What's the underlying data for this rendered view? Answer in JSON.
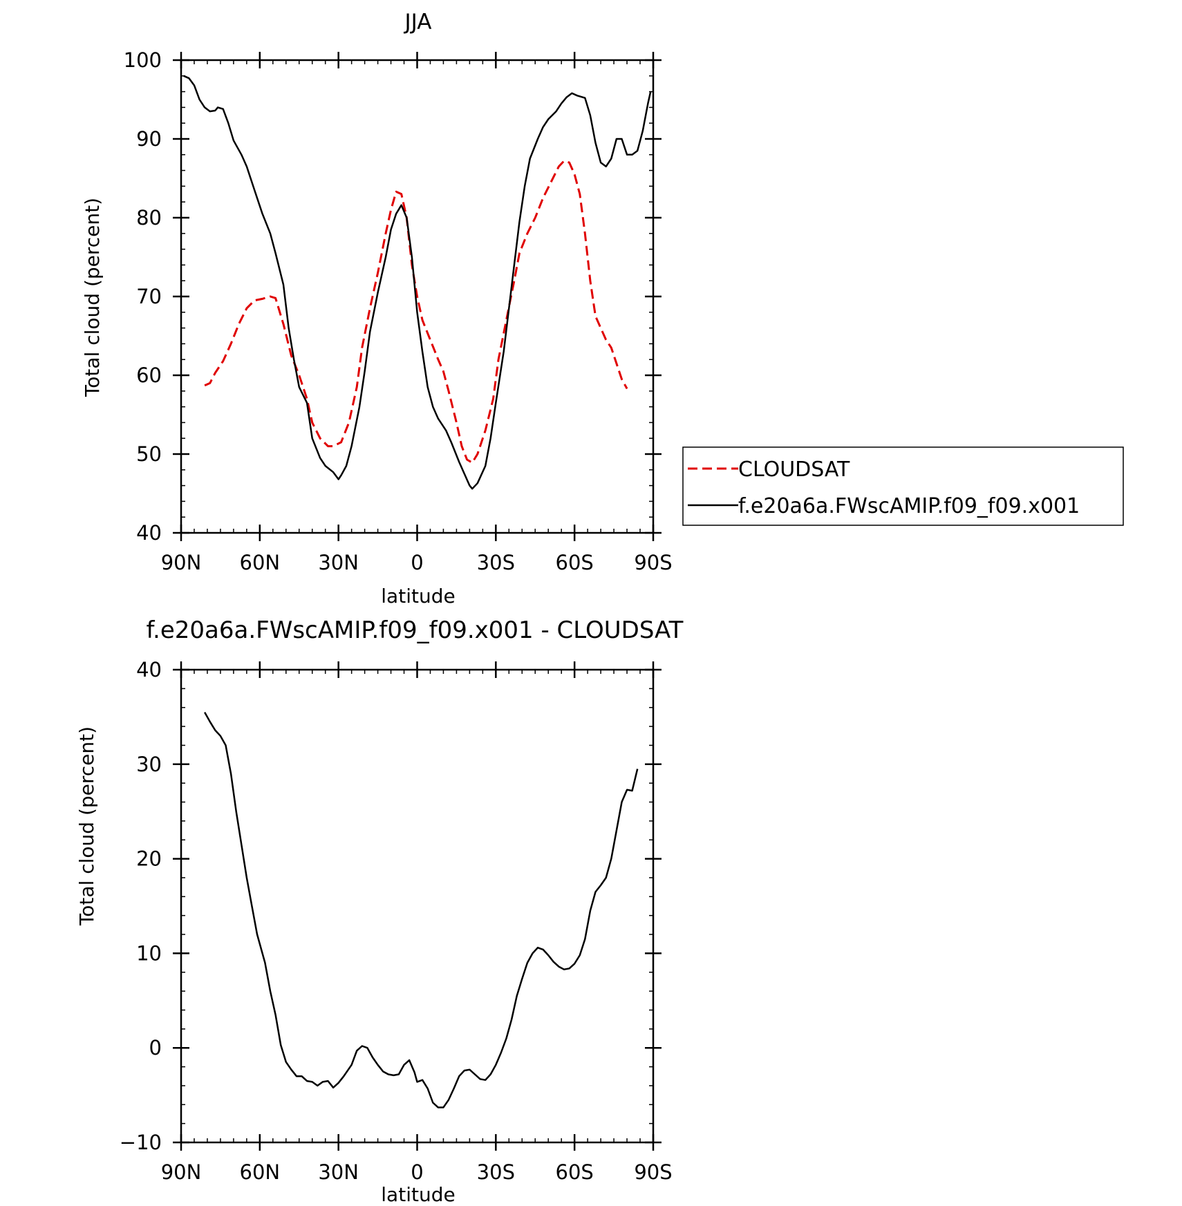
{
  "chart_data": [
    {
      "type": "line",
      "title": "JJA",
      "xlabel": "latitude",
      "ylabel": "Total cloud (percent)",
      "xlim": [
        90,
        -90
      ],
      "ylim": [
        40,
        100
      ],
      "x_ticks": [
        {
          "value": 90,
          "label": "90N"
        },
        {
          "value": 60,
          "label": "60N"
        },
        {
          "value": 30,
          "label": "30N"
        },
        {
          "value": 0,
          "label": "0"
        },
        {
          "value": -30,
          "label": "30S"
        },
        {
          "value": -60,
          "label": "60S"
        },
        {
          "value": -90,
          "label": "90S"
        }
      ],
      "y_ticks": [
        40,
        50,
        60,
        70,
        80,
        90,
        100
      ],
      "legend": "outside-right",
      "series": [
        {
          "name": "CLOUDSAT",
          "color": "#e00000",
          "dash": "dashed",
          "points": [
            [
              81,
              58.7
            ],
            [
              79,
              59.0
            ],
            [
              77,
              60.3
            ],
            [
              74,
              61.8
            ],
            [
              71,
              64.0
            ],
            [
              68,
              66.5
            ],
            [
              65,
              68.5
            ],
            [
              62,
              69.5
            ],
            [
              59,
              69.7
            ],
            [
              56,
              70.0
            ],
            [
              54,
              69.8
            ],
            [
              51,
              66.5
            ],
            [
              48,
              62.5
            ],
            [
              45,
              60.0
            ],
            [
              42,
              57.0
            ],
            [
              40,
              54.0
            ],
            [
              37,
              52.0
            ],
            [
              34,
              51.0
            ],
            [
              32,
              51.0
            ],
            [
              29,
              51.5
            ],
            [
              26,
              54.0
            ],
            [
              23,
              58.5
            ],
            [
              21,
              63.5
            ],
            [
              18,
              68.5
            ],
            [
              15,
              73.0
            ],
            [
              12,
              78.0
            ],
            [
              10,
              81.0
            ],
            [
              8,
              83.3
            ],
            [
              6,
              83.0
            ],
            [
              4,
              80.0
            ],
            [
              2,
              74.0
            ],
            [
              0,
              70.0
            ],
            [
              -2,
              67.0
            ],
            [
              -5,
              64.5
            ],
            [
              -8,
              62.0
            ],
            [
              -10,
              60.5
            ],
            [
              -12,
              58.0
            ],
            [
              -15,
              54.0
            ],
            [
              -17,
              51.0
            ],
            [
              -19,
              49.3
            ],
            [
              -21,
              48.9
            ],
            [
              -23,
              50.0
            ],
            [
              -26,
              53.0
            ],
            [
              -29,
              57.0
            ],
            [
              -31,
              62.0
            ],
            [
              -34,
              67.0
            ],
            [
              -37,
              72.0
            ],
            [
              -39,
              75.5
            ],
            [
              -42,
              78.0
            ],
            [
              -45,
              80.0
            ],
            [
              -48,
              82.5
            ],
            [
              -51,
              84.5
            ],
            [
              -54,
              86.5
            ],
            [
              -56,
              87.2
            ],
            [
              -58,
              87.0
            ],
            [
              -60,
              85.5
            ],
            [
              -62,
              83.0
            ],
            [
              -64,
              78.0
            ],
            [
              -66,
              72.0
            ],
            [
              -68,
              67.5
            ],
            [
              -70,
              66.0
            ],
            [
              -72,
              64.5
            ],
            [
              -74,
              63.5
            ],
            [
              -76,
              61.5
            ],
            [
              -78,
              59.5
            ],
            [
              -80,
              58.3
            ]
          ]
        },
        {
          "name": "f.e20a6a.FWscAMIP.f09_f09.x001",
          "color": "#000000",
          "dash": "solid",
          "points": [
            [
              89,
              98.0
            ],
            [
              87,
              97.7
            ],
            [
              85,
              96.8
            ],
            [
              83,
              95.0
            ],
            [
              81,
              94.0
            ],
            [
              79,
              93.5
            ],
            [
              77,
              93.6
            ],
            [
              76,
              94.0
            ],
            [
              74,
              93.8
            ],
            [
              72,
              92.0
            ],
            [
              70,
              89.8
            ],
            [
              67,
              88.0
            ],
            [
              65,
              86.5
            ],
            [
              62,
              83.5
            ],
            [
              59,
              80.5
            ],
            [
              56,
              78.0
            ],
            [
              54,
              75.5
            ],
            [
              51,
              71.5
            ],
            [
              49,
              66.0
            ],
            [
              47,
              62.0
            ],
            [
              45,
              58.5
            ],
            [
              42,
              56.5
            ],
            [
              40,
              52.0
            ],
            [
              37,
              49.5
            ],
            [
              35,
              48.5
            ],
            [
              32,
              47.7
            ],
            [
              30,
              46.8
            ],
            [
              29,
              47.3
            ],
            [
              27,
              48.5
            ],
            [
              25,
              51.0
            ],
            [
              22,
              56.0
            ],
            [
              20,
              60.5
            ],
            [
              18,
              65.5
            ],
            [
              15,
              70.5
            ],
            [
              12,
              75.0
            ],
            [
              10,
              78.5
            ],
            [
              8,
              80.5
            ],
            [
              6,
              81.6
            ],
            [
              4,
              80.0
            ],
            [
              2,
              75.0
            ],
            [
              0,
              68.0
            ],
            [
              -2,
              63.0
            ],
            [
              -4,
              58.5
            ],
            [
              -6,
              56.0
            ],
            [
              -8,
              54.5
            ],
            [
              -11,
              53.0
            ],
            [
              -13,
              51.5
            ],
            [
              -16,
              49.0
            ],
            [
              -18,
              47.5
            ],
            [
              -20,
              46.0
            ],
            [
              -21,
              45.6
            ],
            [
              -23,
              46.3
            ],
            [
              -26,
              48.5
            ],
            [
              -28,
              52.0
            ],
            [
              -30,
              56.5
            ],
            [
              -33,
              63.0
            ],
            [
              -35,
              68.5
            ],
            [
              -37,
              74.0
            ],
            [
              -39,
              79.5
            ],
            [
              -41,
              84.0
            ],
            [
              -43,
              87.5
            ],
            [
              -46,
              90.0
            ],
            [
              -48,
              91.5
            ],
            [
              -50,
              92.5
            ],
            [
              -53,
              93.5
            ],
            [
              -55,
              94.5
            ],
            [
              -57,
              95.3
            ],
            [
              -59,
              95.8
            ],
            [
              -61,
              95.5
            ],
            [
              -64,
              95.2
            ],
            [
              -66,
              93.0
            ],
            [
              -68,
              89.5
            ],
            [
              -70,
              87.0
            ],
            [
              -72,
              86.5
            ],
            [
              -74,
              87.5
            ],
            [
              -76,
              90.0
            ],
            [
              -78,
              90.0
            ],
            [
              -80,
              88.0
            ],
            [
              -82,
              88.0
            ],
            [
              -84,
              88.5
            ],
            [
              -86,
              91.0
            ],
            [
              -88,
              94.5
            ],
            [
              -89,
              96.0
            ]
          ]
        }
      ]
    },
    {
      "type": "line",
      "title": "f.e20a6a.FWscAMIP.f09_f09.x001 - CLOUDSAT",
      "xlabel": "latitude",
      "ylabel": "Total cloud (percent)",
      "xlim": [
        90,
        -90
      ],
      "ylim": [
        -10,
        40
      ],
      "x_ticks": [
        {
          "value": 90,
          "label": "90N"
        },
        {
          "value": 60,
          "label": "60N"
        },
        {
          "value": 30,
          "label": "30N"
        },
        {
          "value": 0,
          "label": "0"
        },
        {
          "value": -30,
          "label": "30S"
        },
        {
          "value": -60,
          "label": "60S"
        },
        {
          "value": -90,
          "label": "90S"
        }
      ],
      "y_ticks": [
        -10,
        0,
        10,
        20,
        30,
        40
      ],
      "series": [
        {
          "color": "#000000",
          "dash": "solid",
          "points": [
            [
              81,
              35.5
            ],
            [
              79,
              34.5
            ],
            [
              77,
              33.6
            ],
            [
              75,
              33.0
            ],
            [
              73,
              32.0
            ],
            [
              71,
              29.0
            ],
            [
              69,
              25.0
            ],
            [
              67,
              21.5
            ],
            [
              65,
              18.0
            ],
            [
              63,
              15.0
            ],
            [
              61,
              12.0
            ],
            [
              58,
              9.0
            ],
            [
              56,
              6.0
            ],
            [
              54,
              3.5
            ],
            [
              52,
              0.3
            ],
            [
              50,
              -1.5
            ],
            [
              48,
              -2.3
            ],
            [
              46,
              -3.0
            ],
            [
              44,
              -3.0
            ],
            [
              42,
              -3.5
            ],
            [
              40,
              -3.6
            ],
            [
              38,
              -4.0
            ],
            [
              36,
              -3.6
            ],
            [
              34,
              -3.5
            ],
            [
              32,
              -4.2
            ],
            [
              30,
              -3.7
            ],
            [
              28,
              -3.0
            ],
            [
              25,
              -1.8
            ],
            [
              23,
              -0.3
            ],
            [
              21,
              0.2
            ],
            [
              19,
              0.0
            ],
            [
              17,
              -1.0
            ],
            [
              15,
              -1.8
            ],
            [
              13,
              -2.5
            ],
            [
              11,
              -2.8
            ],
            [
              9,
              -2.9
            ],
            [
              7,
              -2.8
            ],
            [
              5,
              -1.8
            ],
            [
              3,
              -1.3
            ],
            [
              1,
              -2.6
            ],
            [
              0,
              -3.6
            ],
            [
              -2,
              -3.4
            ],
            [
              -4,
              -4.3
            ],
            [
              -6,
              -5.8
            ],
            [
              -8,
              -6.3
            ],
            [
              -10,
              -6.3
            ],
            [
              -12,
              -5.5
            ],
            [
              -14,
              -4.3
            ],
            [
              -16,
              -3.0
            ],
            [
              -18,
              -2.4
            ],
            [
              -20,
              -2.3
            ],
            [
              -22,
              -2.8
            ],
            [
              -24,
              -3.3
            ],
            [
              -26,
              -3.4
            ],
            [
              -28,
              -2.8
            ],
            [
              -30,
              -1.8
            ],
            [
              -32,
              -0.5
            ],
            [
              -34,
              1.0
            ],
            [
              -36,
              3.0
            ],
            [
              -38,
              5.5
            ],
            [
              -40,
              7.3
            ],
            [
              -42,
              9.0
            ],
            [
              -44,
              10.0
            ],
            [
              -46,
              10.6
            ],
            [
              -48,
              10.4
            ],
            [
              -50,
              9.8
            ],
            [
              -52,
              9.1
            ],
            [
              -54,
              8.6
            ],
            [
              -56,
              8.3
            ],
            [
              -58,
              8.4
            ],
            [
              -60,
              8.9
            ],
            [
              -62,
              9.8
            ],
            [
              -64,
              11.5
            ],
            [
              -66,
              14.5
            ],
            [
              -68,
              16.5
            ],
            [
              -70,
              17.2
            ],
            [
              -72,
              18.0
            ],
            [
              -74,
              20.0
            ],
            [
              -76,
              23.0
            ],
            [
              -78,
              26.0
            ],
            [
              -80,
              27.3
            ],
            [
              -82,
              27.2
            ],
            [
              -84,
              29.5
            ]
          ]
        }
      ]
    }
  ]
}
